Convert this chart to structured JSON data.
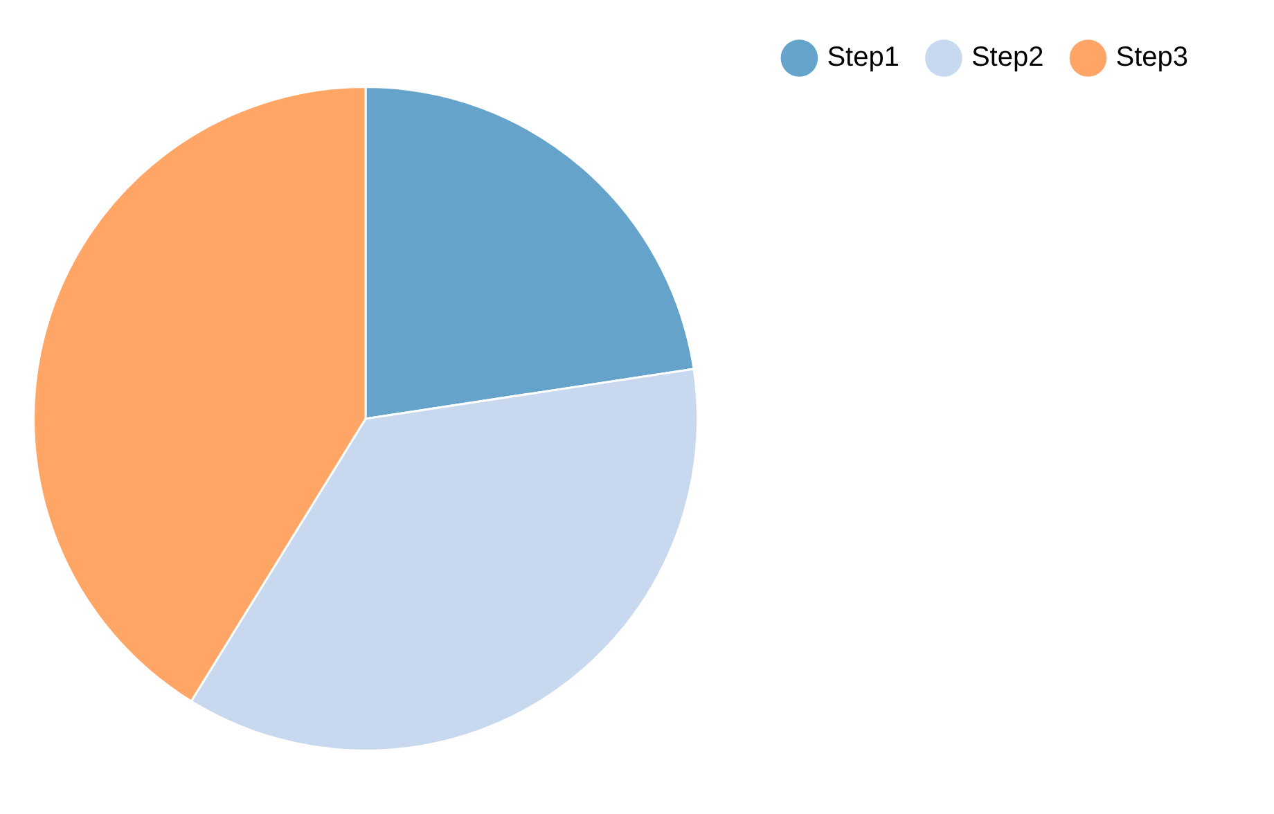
{
  "chart_data": {
    "type": "pie",
    "categories": [
      "Step1",
      "Step2",
      "Step3"
    ],
    "values": [
      22.6,
      36.2,
      41.2
    ],
    "colors": [
      "#66a3cb",
      "#c8d8ee",
      "#ffa566"
    ],
    "legend": "top right"
  }
}
